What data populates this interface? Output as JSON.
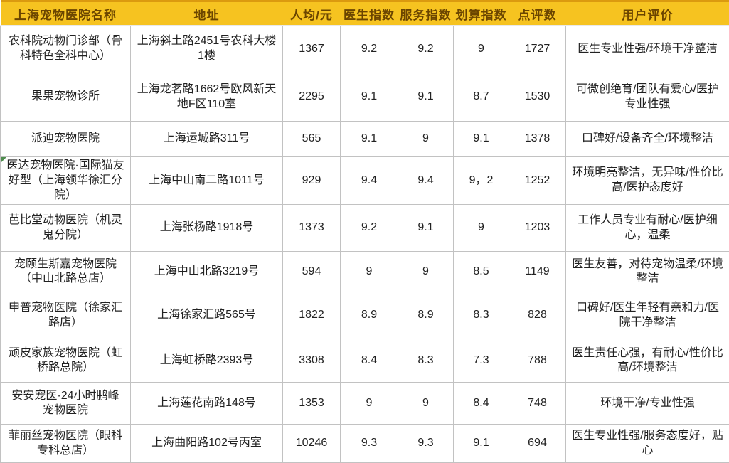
{
  "chart_data": {
    "type": "table",
    "columns": [
      "上海宠物医院名称",
      "地址",
      "人均/元",
      "医生指数",
      "服务指数",
      "划算指数",
      "点评数",
      "用户评价"
    ],
    "rows": [
      [
        "农科院动物门诊部（骨科特色全科中心）",
        "上海斜土路2451号农科大楼1楼",
        1367,
        9.2,
        9.2,
        9,
        1727,
        "医生专业性强/环境干净整洁"
      ],
      [
        "果果宠物诊所",
        "上海龙茗路1662号欧风新天地F区110室",
        2295,
        9.1,
        9.1,
        8.7,
        1530,
        "可微创绝育/团队有爱心/医护专业性强"
      ],
      [
        "派迪宠物医院",
        "上海运城路311号",
        565,
        9.1,
        9,
        9.1,
        1378,
        "口碑好/设备齐全/环境整洁"
      ],
      [
        "医达宠物医院·国际猫友好型（上海领华徐汇分院）",
        "上海中山南二路1011号",
        929,
        9.4,
        9.4,
        "9，2",
        1252,
        "环境明亮整洁，无异味/性价比高/医护态度好"
      ],
      [
        "芭比堂动物医院（机灵鬼分院）",
        "上海张杨路1918号",
        1373,
        9.2,
        9.1,
        9,
        1203,
        "工作人员专业有耐心/医护细心，温柔"
      ],
      [
        "宠颐生斯嘉宠物医院（中山北路总店）",
        "上海中山北路3219号",
        594,
        9,
        9,
        8.5,
        1149,
        "医生友善，对待宠物温柔/环境整洁"
      ],
      [
        "申普宠物医院（徐家汇路店）",
        "上海徐家汇路565号",
        1822,
        8.9,
        8.9,
        8.3,
        828,
        "口碑好/医生年轻有亲和力/医院干净整洁"
      ],
      [
        "顽皮家族宠物医院（虹桥路总院）",
        "上海虹桥路2393号",
        3308,
        8.4,
        8.3,
        7.3,
        788,
        "医生责任心强，有耐心/性价比高/环境整洁"
      ],
      [
        "安安宠医·24小时鹏峰宠物医院",
        "上海莲花南路148号",
        1353,
        9,
        9,
        8.4,
        748,
        "环境干净/专业性强"
      ],
      [
        "菲丽丝宠物医院（眼科专科总店）",
        "上海曲阳路102号丙室",
        10246,
        9.3,
        9.3,
        9.1,
        694,
        "医生专业性强/服务态度好，贴心"
      ]
    ],
    "colors": {
      "header_bg": "#F6C320",
      "header_top_edge": "#DB9A0F",
      "header_text": "#6B4500",
      "grid_border": "#C2C2C2",
      "body_text": "#212121",
      "error_marker_green": "#4E8D4E"
    }
  }
}
